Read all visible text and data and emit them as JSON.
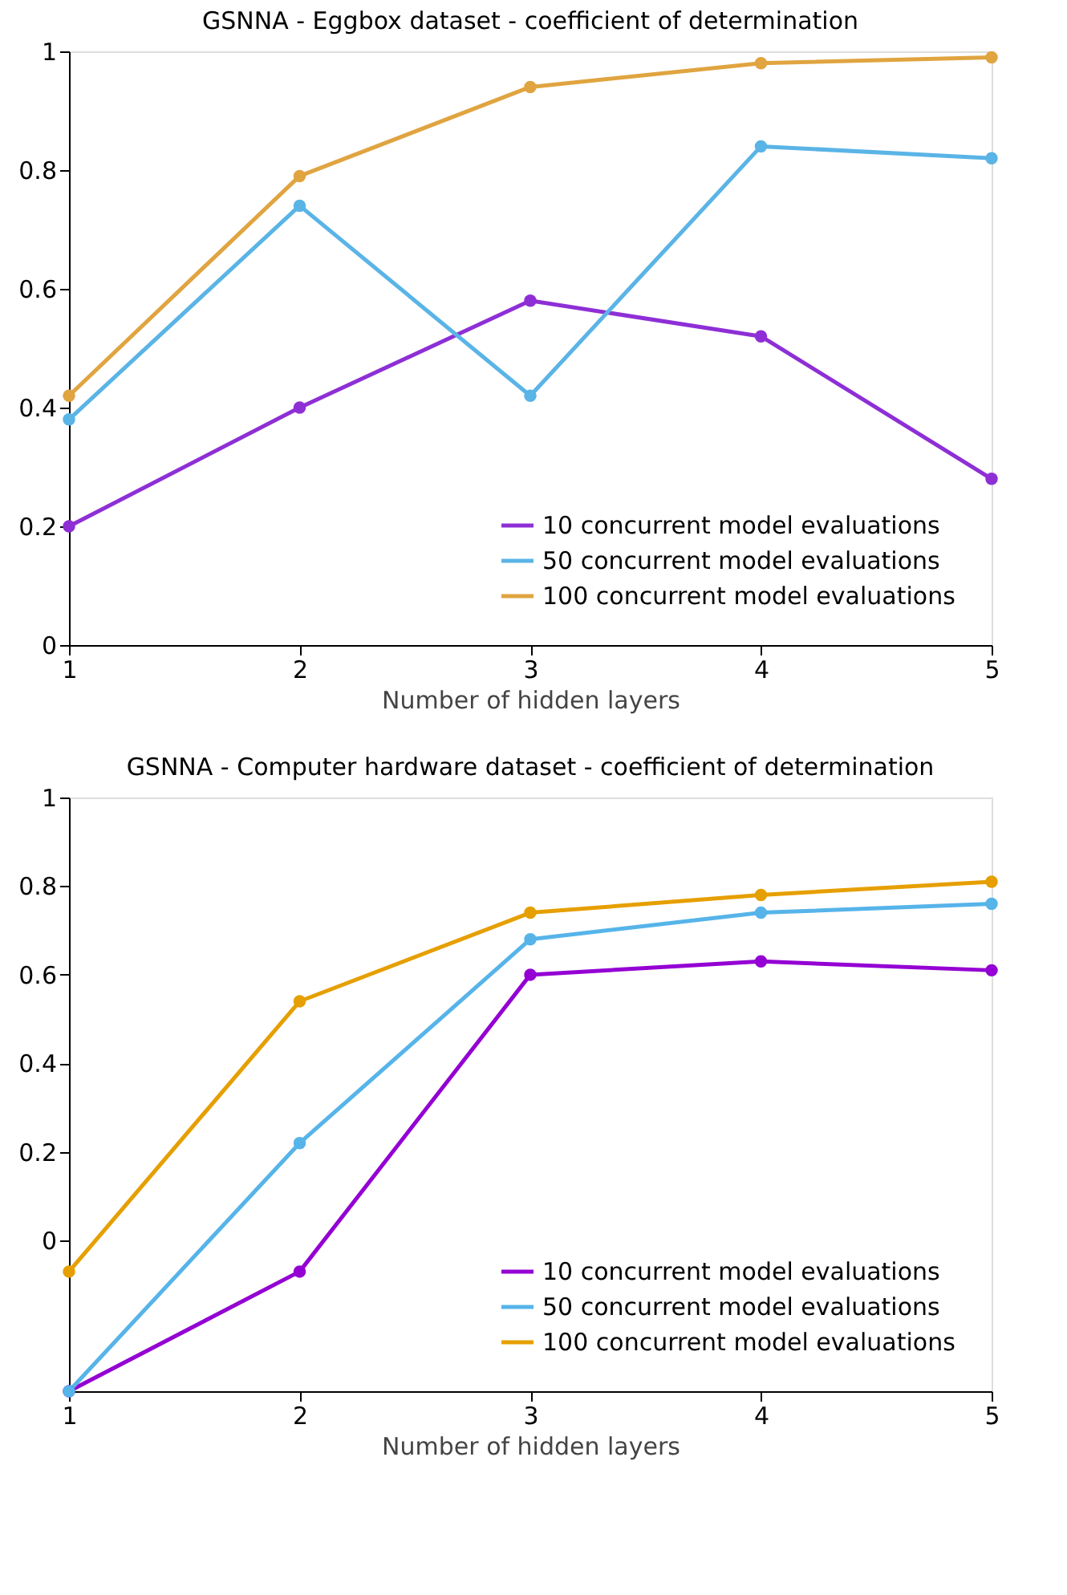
{
  "chart_data": [
    {
      "type": "line",
      "title": "GSNNA - Eggbox dataset - coefficient of determination",
      "xlabel": "Number of hidden layers",
      "x": [
        1,
        2,
        3,
        4,
        5
      ],
      "xlim": [
        1,
        5
      ],
      "xticks": [
        1,
        2,
        3,
        4,
        5
      ],
      "ylim": [
        0,
        1
      ],
      "yticks": [
        0,
        0.2,
        0.4,
        0.6,
        0.8,
        1
      ],
      "grid": false,
      "legend": "bottom right",
      "marker": "circle",
      "line_style": "solid",
      "series": [
        {
          "name": "10 concurrent model evaluations",
          "color": "#8e2fd6",
          "values": [
            0.2,
            0.4,
            0.58,
            0.52,
            0.28
          ]
        },
        {
          "name": "50 concurrent model evaluations",
          "color": "#5ab4e6",
          "values": [
            0.38,
            0.74,
            0.42,
            0.84,
            0.82
          ]
        },
        {
          "name": "100 concurrent model evaluations",
          "color": "#e0a440",
          "values": [
            0.42,
            0.79,
            0.94,
            0.98,
            0.99
          ]
        }
      ]
    },
    {
      "type": "line",
      "title": "GSNNA - Computer hardware dataset - coefficient of determination",
      "xlabel": "Number of hidden layers",
      "x": [
        1,
        2,
        3,
        4,
        5
      ],
      "xlim": [
        1,
        5
      ],
      "xticks": [
        1,
        2,
        3,
        4,
        5
      ],
      "ylim": [
        -0.34,
        1
      ],
      "yticks": [
        0,
        0.2,
        0.4,
        0.6,
        0.8,
        1
      ],
      "grid": false,
      "legend": "bottom right",
      "marker": "circle",
      "line_style": "solid",
      "series": [
        {
          "name": "10 concurrent model evaluations",
          "color": "#9400d3",
          "values": [
            -0.34,
            -0.07,
            0.6,
            0.63,
            0.61
          ]
        },
        {
          "name": "50 concurrent model evaluations",
          "color": "#56b4e9",
          "values": [
            -0.34,
            0.22,
            0.68,
            0.74,
            0.76
          ]
        },
        {
          "name": "100 concurrent model evaluations",
          "color": "#e69f00",
          "values": [
            -0.07,
            0.54,
            0.74,
            0.78,
            0.81
          ]
        }
      ]
    }
  ]
}
